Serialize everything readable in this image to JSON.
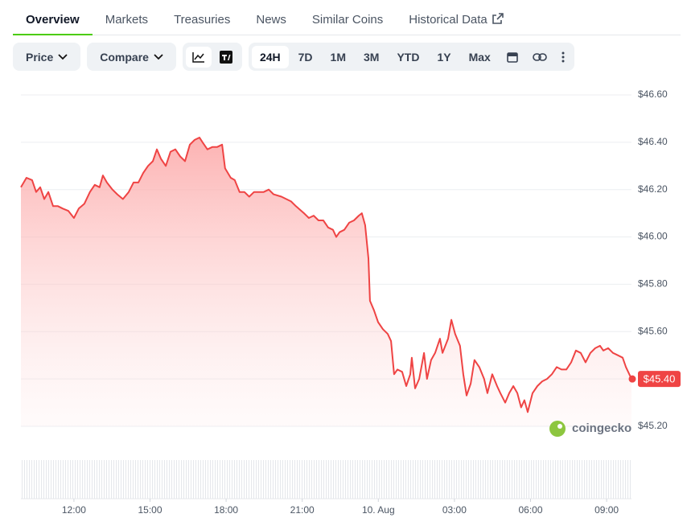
{
  "tabs": [
    "Overview",
    "Markets",
    "Treasuries",
    "News",
    "Similar Coins",
    "Historical Data"
  ],
  "toolbar": {
    "price": "Price",
    "compare": "Compare",
    "ranges": [
      "24H",
      "7D",
      "1M",
      "3M",
      "YTD",
      "1Y",
      "Max"
    ]
  },
  "watermark": "coingecko",
  "chart_data": {
    "type": "line",
    "x": [
      9.91,
      10.13,
      10.35,
      10.51,
      10.67,
      10.83,
      10.99,
      11.18,
      11.37,
      11.56,
      11.78,
      12.0,
      12.19,
      12.41,
      12.63,
      12.82,
      13.01,
      13.14,
      13.3,
      13.52,
      13.71,
      13.93,
      14.16,
      14.35,
      14.54,
      14.73,
      14.92,
      15.11,
      15.27,
      15.43,
      15.62,
      15.81,
      16.0,
      16.19,
      16.38,
      16.57,
      16.76,
      16.95,
      17.07,
      17.26,
      17.46,
      17.65,
      17.84,
      17.96,
      18.18,
      18.34,
      18.53,
      18.72,
      18.91,
      19.1,
      19.29,
      19.48,
      19.68,
      19.87,
      20.18,
      20.56,
      20.75,
      21.07,
      21.26,
      21.45,
      21.64,
      21.83,
      22.02,
      22.21,
      22.34,
      22.47,
      22.66,
      22.85,
      23.04,
      23.23,
      23.35,
      23.48,
      23.61,
      23.67,
      23.83,
      23.99,
      24.18,
      24.37,
      24.5,
      24.62,
      24.75,
      24.94,
      25.1,
      25.26,
      25.32,
      25.45,
      25.61,
      25.8,
      25.92,
      26.08,
      26.24,
      26.43,
      26.53,
      26.75,
      26.88,
      27.03,
      27.22,
      27.35,
      27.48,
      27.64,
      27.79,
      27.98,
      28.17,
      28.3,
      28.49,
      28.68,
      28.81,
      29.0,
      29.16,
      29.32,
      29.48,
      29.63,
      29.76,
      29.89,
      30.08,
      30.27,
      30.46,
      30.65,
      30.84,
      31.03,
      31.22,
      31.41,
      31.6,
      31.79,
      31.98,
      32.17,
      32.36,
      32.55,
      32.74,
      32.87,
      33.06,
      33.25,
      33.44,
      33.63,
      33.76,
      33.98
    ],
    "series": [
      {
        "color": "#ef4444",
        "values": [
          46.21,
          46.25,
          46.24,
          46.19,
          46.21,
          46.16,
          46.19,
          46.13,
          46.13,
          46.12,
          46.11,
          46.08,
          46.12,
          46.14,
          46.19,
          46.22,
          46.21,
          46.26,
          46.23,
          46.2,
          46.18,
          46.16,
          46.19,
          46.23,
          46.23,
          46.27,
          46.3,
          46.32,
          46.37,
          46.33,
          46.3,
          46.36,
          46.37,
          46.34,
          46.32,
          46.39,
          46.41,
          46.42,
          46.4,
          46.37,
          46.38,
          46.38,
          46.39,
          46.29,
          46.25,
          46.24,
          46.19,
          46.19,
          46.17,
          46.19,
          46.19,
          46.19,
          46.2,
          46.18,
          46.17,
          46.15,
          46.13,
          46.1,
          46.08,
          46.09,
          46.07,
          46.07,
          46.04,
          46.03,
          46.0,
          46.02,
          46.03,
          46.06,
          46.07,
          46.09,
          46.1,
          46.05,
          45.91,
          45.73,
          45.69,
          45.64,
          45.61,
          45.59,
          45.56,
          45.42,
          45.44,
          45.43,
          45.37,
          45.42,
          45.49,
          45.36,
          45.4,
          45.51,
          45.4,
          45.48,
          45.51,
          45.57,
          45.51,
          45.57,
          45.65,
          45.59,
          45.54,
          45.42,
          45.33,
          45.38,
          45.48,
          45.45,
          45.4,
          45.34,
          45.42,
          45.37,
          45.34,
          45.3,
          45.34,
          45.37,
          45.34,
          45.28,
          45.31,
          45.26,
          45.34,
          45.37,
          45.39,
          45.4,
          45.42,
          45.45,
          45.44,
          45.44,
          45.47,
          45.52,
          45.51,
          45.47,
          45.51,
          45.53,
          45.54,
          45.52,
          45.53,
          45.51,
          45.5,
          45.49,
          45.45,
          45.4
        ]
      }
    ],
    "current_price": {
      "value": 45.4,
      "label": "$45.40"
    },
    "xlim": [
      9.91,
      33.98
    ],
    "xticks": [
      {
        "value": 12,
        "label": "12:00"
      },
      {
        "value": 15,
        "label": "15:00"
      },
      {
        "value": 18,
        "label": "18:00"
      },
      {
        "value": 21,
        "label": "21:00"
      },
      {
        "value": 24,
        "label": "10. Aug"
      },
      {
        "value": 27,
        "label": "03:00"
      },
      {
        "value": 30,
        "label": "06:00"
      },
      {
        "value": 33,
        "label": "09:00"
      }
    ],
    "ylim": [
      45.2,
      46.6
    ],
    "yticks": [
      {
        "value": 46.6,
        "label": "$46.60"
      },
      {
        "value": 46.4,
        "label": "$46.40"
      },
      {
        "value": 46.2,
        "label": "$46.20"
      },
      {
        "value": 46.0,
        "label": "$46.00"
      },
      {
        "value": 45.8,
        "label": "$45.80"
      },
      {
        "value": 45.6,
        "label": "$45.60"
      },
      {
        "value": 45.4,
        "label": "$45.40"
      },
      {
        "value": 45.2,
        "label": "$45.20"
      }
    ],
    "grid": true
  }
}
